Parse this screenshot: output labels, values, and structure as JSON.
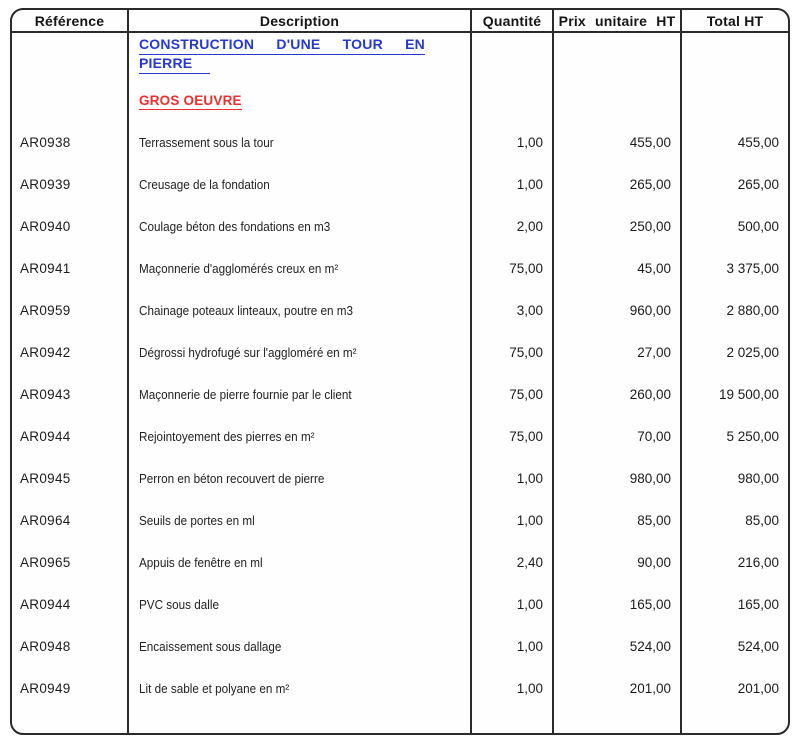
{
  "document": {
    "columns": [
      {
        "key": "ref",
        "label": "Référence"
      },
      {
        "key": "desc",
        "label": "Description"
      },
      {
        "key": "qty",
        "label": "Quantité"
      },
      {
        "key": "unit",
        "label": "Prix unitaire HT"
      },
      {
        "key": "total",
        "label": "Total HT"
      }
    ],
    "section": {
      "title_full": "CONSTRUCTION D'UNE TOUR EN PIERRE",
      "title_line1": "CONSTRUCTION D'UNE TOUR EN",
      "title_line2": "PIERRE",
      "subtitle": "GROS OEUVRE",
      "title_color": "#2638cf",
      "subtitle_color": "#ee2e2e"
    },
    "rows": [
      {
        "ref": "AR0938",
        "desc": "Terrassement sous la tour",
        "qty": "1,00",
        "unit": "455,00",
        "total": "455,00"
      },
      {
        "ref": "AR0939",
        "desc": "Creusage de la fondation",
        "qty": "1,00",
        "unit": "265,00",
        "total": "265,00"
      },
      {
        "ref": "AR0940",
        "desc": "Coulage béton des fondations en m3",
        "qty": "2,00",
        "unit": "250,00",
        "total": "500,00"
      },
      {
        "ref": "AR0941",
        "desc": "Maçonnerie d'agglomérés creux en m²",
        "qty": "75,00",
        "unit": "45,00",
        "total": "3 375,00"
      },
      {
        "ref": "AR0959",
        "desc": "Chainage poteaux linteaux, poutre en m3",
        "qty": "3,00",
        "unit": "960,00",
        "total": "2 880,00"
      },
      {
        "ref": "AR0942",
        "desc": "Dégrossi hydrofugé sur l'aggloméré en m²",
        "qty": "75,00",
        "unit": "27,00",
        "total": "2 025,00"
      },
      {
        "ref": "AR0943",
        "desc": "Maçonnerie de pierre fournie par le client",
        "qty": "75,00",
        "unit": "260,00",
        "total": "19 500,00"
      },
      {
        "ref": "AR0944",
        "desc": "Rejointoyement des pierres en m²",
        "qty": "75,00",
        "unit": "70,00",
        "total": "5 250,00"
      },
      {
        "ref": "AR0945",
        "desc": "Perron en béton recouvert de pierre",
        "qty": "1,00",
        "unit": "980,00",
        "total": "980,00"
      },
      {
        "ref": "AR0964",
        "desc": "Seuils de portes en ml",
        "qty": "1,00",
        "unit": "85,00",
        "total": "85,00"
      },
      {
        "ref": "AR0965",
        "desc": "Appuis de fenêtre en ml",
        "qty": "2,40",
        "unit": "90,00",
        "total": "216,00"
      },
      {
        "ref": "AR0944",
        "desc": "PVC sous dalle",
        "qty": "1,00",
        "unit": "165,00",
        "total": "165,00"
      },
      {
        "ref": "AR0948",
        "desc": "Encaissement sous dallage",
        "qty": "1,00",
        "unit": "524,00",
        "total": "524,00"
      },
      {
        "ref": "AR0949",
        "desc": "Lit de sable et polyane en m²",
        "qty": "1,00",
        "unit": "201,00",
        "total": "201,00"
      }
    ]
  }
}
